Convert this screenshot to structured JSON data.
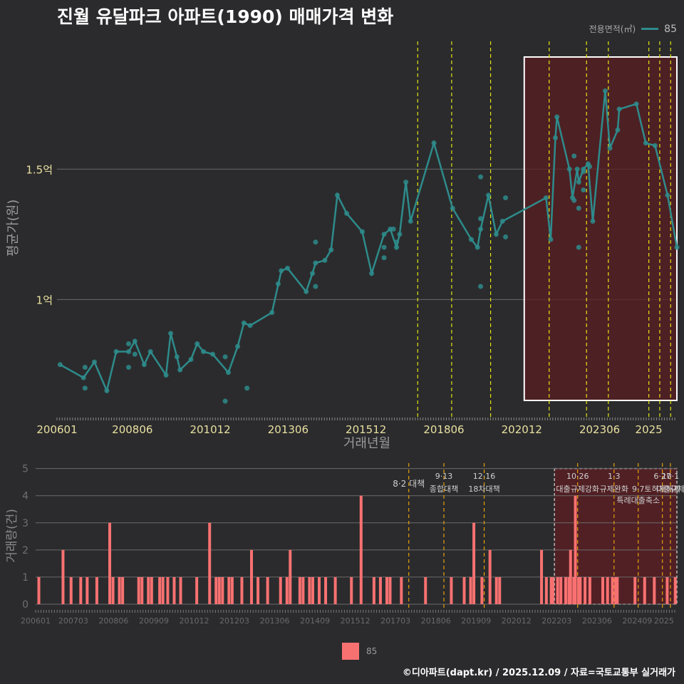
{
  "header": {
    "title": "진월 유달파크 아파트(1990) 매매가격 변화",
    "legend_title": "전용면적(㎡)",
    "legend_value": "85"
  },
  "footer": {
    "credit": "©디아파트(dapt.kr) / 2025.12.09 / 자료=국토교통부 실거래가",
    "bar_legend_label": "85"
  },
  "colors": {
    "background": "#2b2b2d",
    "line": "#2e8b8b",
    "bar": "#f87171",
    "policy_line": "#e5e510",
    "policy_line_bottom": "#e6a00a",
    "highlight_fill": "#5a1e22"
  },
  "chart_data": [
    {
      "type": "line",
      "title": "진월 유달파크 아파트(1990) 매매가격 변화",
      "xlabel": "거래년월",
      "ylabel": "평균가(원)",
      "x_range": [
        2006.0,
        2025.9
      ],
      "ylim": [
        0.55,
        1.99
      ],
      "y_ticks": [
        {
          "v": 1.0,
          "label": "1억"
        },
        {
          "v": 1.5,
          "label": "1.5억"
        }
      ],
      "x_ticks": [
        {
          "v": 2006.0,
          "label": "200601"
        },
        {
          "v": 2008.42,
          "label": "200806"
        },
        {
          "v": 2010.92,
          "label": "201012"
        },
        {
          "v": 2013.42,
          "label": "201306"
        },
        {
          "v": 2015.92,
          "label": "201512"
        },
        {
          "v": 2018.42,
          "label": "201806"
        },
        {
          "v": 2020.92,
          "label": "202012"
        },
        {
          "v": 2023.42,
          "label": "202306"
        },
        {
          "v": 2025.0,
          "label": "2025"
        }
      ],
      "vlines": [
        2017.58,
        2018.67,
        2019.92,
        2021.8,
        2023.0,
        2023.7,
        2025.0,
        2025.35,
        2025.7
      ],
      "highlight_range": [
        2021.0,
        2025.9
      ],
      "series": [
        {
          "name": "85",
          "line": [
            [
              2006.1,
              0.75
            ],
            [
              2006.85,
              0.7
            ],
            [
              2007.2,
              0.76
            ],
            [
              2007.6,
              0.65
            ],
            [
              2007.9,
              0.8
            ],
            [
              2008.3,
              0.8
            ],
            [
              2008.5,
              0.84
            ],
            [
              2008.8,
              0.75
            ],
            [
              2009.0,
              0.8
            ],
            [
              2009.5,
              0.71
            ],
            [
              2009.65,
              0.87
            ],
            [
              2009.85,
              0.78
            ],
            [
              2009.95,
              0.73
            ],
            [
              2010.3,
              0.77
            ],
            [
              2010.5,
              0.83
            ],
            [
              2010.7,
              0.8
            ],
            [
              2011.0,
              0.79
            ],
            [
              2011.5,
              0.72
            ],
            [
              2011.8,
              0.82
            ],
            [
              2012.0,
              0.91
            ],
            [
              2012.2,
              0.9
            ],
            [
              2012.9,
              0.95
            ],
            [
              2013.2,
              1.11
            ],
            [
              2013.4,
              1.12
            ],
            [
              2014.0,
              1.03
            ],
            [
              2014.2,
              1.1
            ],
            [
              2014.3,
              1.14
            ],
            [
              2014.6,
              1.15
            ],
            [
              2014.8,
              1.19
            ],
            [
              2015.0,
              1.4
            ],
            [
              2015.3,
              1.33
            ],
            [
              2015.8,
              1.26
            ],
            [
              2016.1,
              1.1
            ],
            [
              2016.5,
              1.25
            ],
            [
              2016.7,
              1.27
            ],
            [
              2016.9,
              1.2
            ],
            [
              2017.0,
              1.25
            ],
            [
              2017.2,
              1.45
            ],
            [
              2017.35,
              1.3
            ],
            [
              2018.1,
              1.6
            ],
            [
              2018.7,
              1.35
            ],
            [
              2019.3,
              1.23
            ],
            [
              2019.5,
              1.2
            ],
            [
              2019.6,
              1.27
            ],
            [
              2019.85,
              1.4
            ],
            [
              2020.1,
              1.25
            ],
            [
              2020.3,
              1.3
            ],
            [
              2021.7,
              1.39
            ],
            [
              2021.85,
              1.23
            ],
            [
              2022.0,
              1.62
            ],
            [
              2022.05,
              1.7
            ],
            [
              2022.45,
              1.5
            ],
            [
              2022.55,
              1.39
            ],
            [
              2022.7,
              1.5
            ],
            [
              2022.75,
              1.45
            ],
            [
              2022.9,
              1.5
            ],
            [
              2023.05,
              1.52
            ],
            [
              2023.2,
              1.3
            ],
            [
              2023.6,
              1.8
            ],
            [
              2023.75,
              1.58
            ],
            [
              2024.0,
              1.65
            ],
            [
              2024.05,
              1.73
            ],
            [
              2024.6,
              1.75
            ],
            [
              2024.9,
              1.6
            ],
            [
              2025.2,
              1.59
            ],
            [
              2025.6,
              1.4
            ],
            [
              2025.9,
              1.2
            ]
          ],
          "points": [
            [
              2006.9,
              0.74
            ],
            [
              2006.9,
              0.66
            ],
            [
              2008.3,
              0.83
            ],
            [
              2008.3,
              0.74
            ],
            [
              2008.5,
              0.79
            ],
            [
              2011.4,
              0.78
            ],
            [
              2011.4,
              0.61
            ],
            [
              2012.1,
              0.66
            ],
            [
              2013.1,
              1.06
            ],
            [
              2014.3,
              1.05
            ],
            [
              2014.3,
              1.22
            ],
            [
              2016.5,
              1.2
            ],
            [
              2016.5,
              1.16
            ],
            [
              2016.8,
              1.27
            ],
            [
              2016.9,
              1.22
            ],
            [
              2019.6,
              1.47
            ],
            [
              2019.6,
              1.31
            ],
            [
              2019.6,
              1.05
            ],
            [
              2020.4,
              1.24
            ],
            [
              2020.4,
              1.39
            ],
            [
              2022.6,
              1.55
            ],
            [
              2022.6,
              1.38
            ],
            [
              2022.75,
              1.35
            ],
            [
              2022.75,
              1.2
            ],
            [
              2022.9,
              1.49
            ],
            [
              2022.9,
              1.42
            ],
            [
              2023.1,
              1.51
            ]
          ]
        }
      ]
    },
    {
      "type": "bar",
      "xlabel": "",
      "ylabel": "거래량(건)",
      "x_range": [
        2006.0,
        2025.9
      ],
      "ylim": [
        0,
        5.2
      ],
      "y_ticks": [
        0,
        1,
        2,
        3,
        4,
        5
      ],
      "x_ticks": [
        {
          "v": 2006.0,
          "label": "200601"
        },
        {
          "v": 2007.17,
          "label": "200703"
        },
        {
          "v": 2008.42,
          "label": "200806"
        },
        {
          "v": 2009.67,
          "label": "200909"
        },
        {
          "v": 2010.92,
          "label": "201012"
        },
        {
          "v": 2012.17,
          "label": "201203"
        },
        {
          "v": 2013.42,
          "label": "201306"
        },
        {
          "v": 2014.67,
          "label": "201409"
        },
        {
          "v": 2015.92,
          "label": "201512"
        },
        {
          "v": 2017.17,
          "label": "201703"
        },
        {
          "v": 2018.42,
          "label": "201806"
        },
        {
          "v": 2019.67,
          "label": "201909"
        },
        {
          "v": 2020.92,
          "label": "202012"
        },
        {
          "v": 2022.17,
          "label": "202203"
        },
        {
          "v": 2023.42,
          "label": "202306"
        },
        {
          "v": 2024.67,
          "label": "202409"
        },
        {
          "v": 2025.5,
          "label": "2025"
        }
      ],
      "policy_events": [
        {
          "x": 2017.58,
          "date": "8·2 대책",
          "desc": ""
        },
        {
          "x": 2018.67,
          "date": "9·13",
          "desc": "종합대책"
        },
        {
          "x": 2019.92,
          "date": "12·16",
          "desc": "18차대책"
        },
        {
          "x": 2022.82,
          "date": "10·26",
          "desc": "대출규제강화"
        },
        {
          "x": 2023.95,
          "date": "1·3",
          "desc": "규제완화"
        },
        {
          "x": 2024.7,
          "date": "9·7",
          "desc": "특례대출축소"
        },
        {
          "x": 2025.45,
          "date": "6·27",
          "desc": "토허제해제"
        },
        {
          "x": 2025.7,
          "date": "10·1",
          "desc": "대출규제"
        }
      ],
      "highlight_range": [
        2022.1,
        2025.9
      ],
      "series": [
        {
          "name": "85",
          "bars": [
            [
              2006.1,
              1
            ],
            [
              2006.85,
              2
            ],
            [
              2007.1,
              1
            ],
            [
              2007.4,
              1
            ],
            [
              2007.6,
              1
            ],
            [
              2007.9,
              1
            ],
            [
              2008.3,
              3
            ],
            [
              2008.4,
              1
            ],
            [
              2008.6,
              1
            ],
            [
              2008.7,
              1
            ],
            [
              2009.2,
              1
            ],
            [
              2009.3,
              1
            ],
            [
              2009.5,
              1
            ],
            [
              2009.6,
              1
            ],
            [
              2009.85,
              1
            ],
            [
              2009.95,
              1
            ],
            [
              2010.1,
              1
            ],
            [
              2010.3,
              1
            ],
            [
              2010.5,
              1
            ],
            [
              2011.0,
              1
            ],
            [
              2011.4,
              3
            ],
            [
              2011.6,
              1
            ],
            [
              2011.7,
              1
            ],
            [
              2011.8,
              1
            ],
            [
              2012.0,
              1
            ],
            [
              2012.1,
              1
            ],
            [
              2012.4,
              1
            ],
            [
              2012.7,
              2
            ],
            [
              2012.9,
              1
            ],
            [
              2013.2,
              1
            ],
            [
              2013.6,
              1
            ],
            [
              2013.8,
              1
            ],
            [
              2013.9,
              2
            ],
            [
              2014.2,
              1
            ],
            [
              2014.3,
              1
            ],
            [
              2014.5,
              1
            ],
            [
              2014.6,
              1
            ],
            [
              2014.8,
              1
            ],
            [
              2015.0,
              1
            ],
            [
              2015.3,
              1
            ],
            [
              2015.8,
              1
            ],
            [
              2016.1,
              4
            ],
            [
              2016.5,
              1
            ],
            [
              2016.7,
              1
            ],
            [
              2016.9,
              1
            ],
            [
              2017.0,
              1
            ],
            [
              2017.35,
              1
            ],
            [
              2018.1,
              1
            ],
            [
              2018.9,
              1
            ],
            [
              2019.3,
              1
            ],
            [
              2019.5,
              1
            ],
            [
              2019.6,
              3
            ],
            [
              2019.85,
              1
            ],
            [
              2020.1,
              2
            ],
            [
              2020.3,
              1
            ],
            [
              2020.4,
              1
            ],
            [
              2021.7,
              2
            ],
            [
              2021.85,
              1
            ],
            [
              2022.0,
              1
            ],
            [
              2022.05,
              1
            ],
            [
              2022.2,
              1
            ],
            [
              2022.3,
              1
            ],
            [
              2022.45,
              1
            ],
            [
              2022.55,
              1
            ],
            [
              2022.6,
              2
            ],
            [
              2022.7,
              1
            ],
            [
              2022.75,
              4
            ],
            [
              2022.85,
              1
            ],
            [
              2022.9,
              1
            ],
            [
              2023.05,
              1
            ],
            [
              2023.2,
              1
            ],
            [
              2023.6,
              1
            ],
            [
              2023.75,
              1
            ],
            [
              2023.9,
              1
            ],
            [
              2024.0,
              1
            ],
            [
              2024.05,
              1
            ],
            [
              2024.6,
              1
            ],
            [
              2024.9,
              1
            ],
            [
              2025.2,
              1
            ],
            [
              2025.6,
              1
            ],
            [
              2025.85,
              1
            ]
          ]
        }
      ]
    }
  ]
}
